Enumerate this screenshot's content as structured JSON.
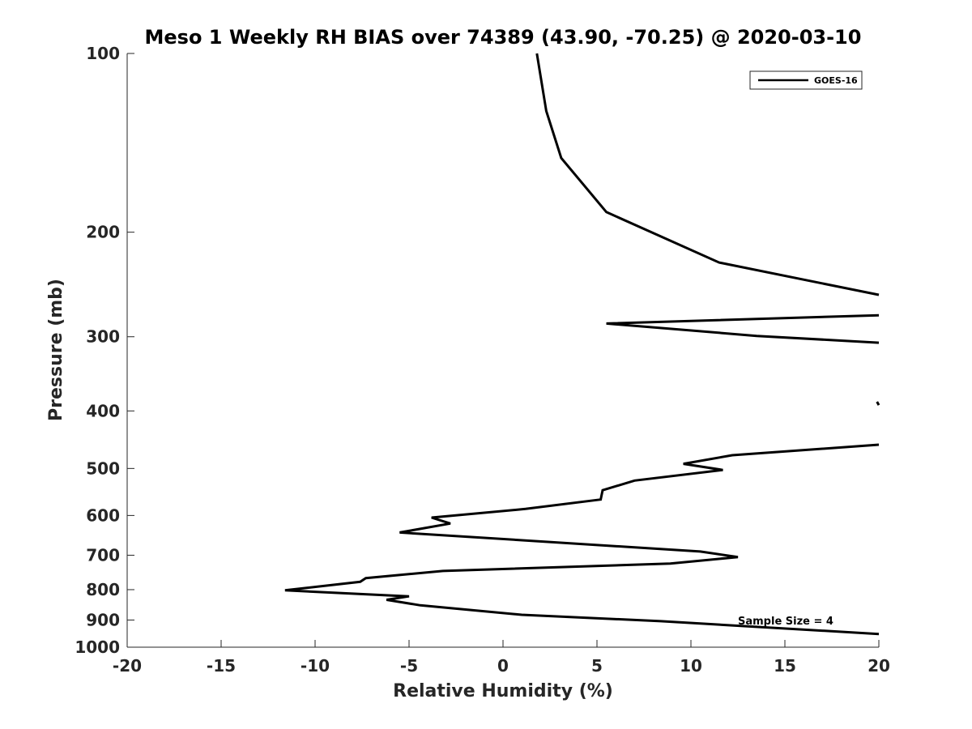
{
  "chart_data": {
    "type": "line",
    "title": "Meso 1 Weekly RH BIAS over 74389 (43.90, -70.25) @ 2020-03-10",
    "xlabel": "Relative Humidity (%)",
    "ylabel": "Pressure (mb)",
    "xlim": [
      -20,
      20
    ],
    "ylim": [
      100,
      1000
    ],
    "y_scale": "log",
    "y_direction": "reversed",
    "grid": false,
    "x_ticks": [
      "-20",
      "-15",
      "-10",
      "-5",
      "0",
      "5",
      "10",
      "15",
      "20"
    ],
    "y_ticks": [
      "100",
      "200",
      "300",
      "400",
      "500",
      "600",
      "700",
      "800",
      "900",
      "1000"
    ],
    "legend": {
      "position": "top-right",
      "entries": [
        "GOES-16"
      ]
    },
    "annotation": "Sample Size = 4",
    "colors": {
      "line": "#000000",
      "text": "#262626",
      "background": "#ffffff"
    },
    "series": [
      {
        "name": "GOES-16",
        "segments": [
          [
            [
              1.8,
              100
            ],
            [
              2.3,
              125
            ],
            [
              3.1,
              150
            ],
            [
              5.5,
              185
            ],
            [
              11.5,
              225
            ],
            [
              20.0,
              255
            ]
          ],
          [
            [
              20.0,
              276
            ],
            [
              5.5,
              285
            ],
            [
              13.5,
              299
            ],
            [
              20.0,
              307
            ]
          ],
          [
            [
              19.9,
              386
            ],
            [
              20.0,
              391
            ]
          ],
          [
            [
              20.0,
              456
            ],
            [
              12.2,
              475
            ],
            [
              9.6,
              491
            ],
            [
              11.7,
              503
            ],
            [
              7.0,
              524
            ],
            [
              5.3,
              544
            ],
            [
              5.2,
              564
            ],
            [
              1.2,
              585
            ],
            [
              -3.8,
              605
            ],
            [
              -2.8,
              619
            ],
            [
              -5.5,
              641
            ],
            [
              10.5,
              690
            ],
            [
              12.5,
              705
            ],
            [
              8.9,
              723
            ],
            [
              -3.2,
              744
            ],
            [
              -7.3,
              765
            ],
            [
              -7.6,
              776
            ],
            [
              -11.6,
              802
            ],
            [
              -5.0,
              821
            ],
            [
              -6.2,
              832
            ],
            [
              -4.4,
              850
            ],
            [
              1.0,
              882
            ],
            [
              8.4,
              904
            ],
            [
              20.0,
              950
            ]
          ]
        ]
      }
    ]
  }
}
